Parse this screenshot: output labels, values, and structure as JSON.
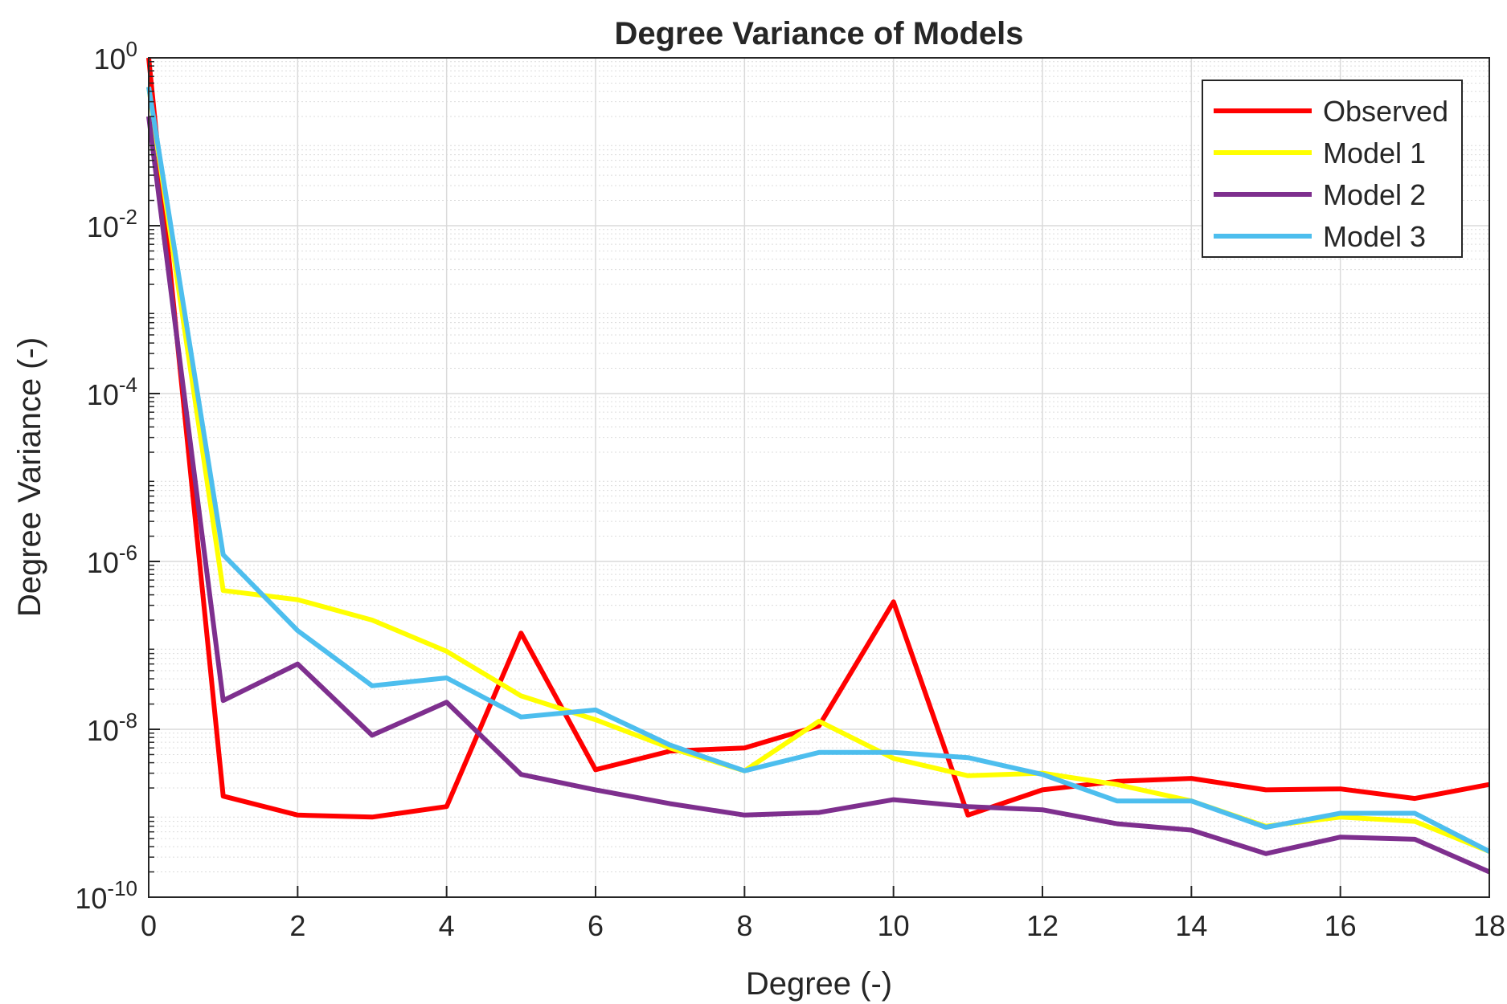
{
  "chart_data": {
    "type": "line",
    "title": "Degree Variance of Models",
    "xlabel": "Degree (-)",
    "ylabel": "Degree Variance (-)",
    "xlim": [
      0,
      18
    ],
    "ylim": [
      1e-10,
      1
    ],
    "yscale": "log",
    "grid": true,
    "minor_grid": true,
    "legend_position": "top-right",
    "x_ticks": [
      0,
      2,
      4,
      6,
      8,
      10,
      12,
      14,
      16,
      18
    ],
    "x_tick_labels": [
      "0",
      "2",
      "4",
      "6",
      "8",
      "10",
      "12",
      "14",
      "16",
      "18"
    ],
    "y_tick_exponents": [
      0,
      -2,
      -4,
      -6,
      -8,
      -10
    ],
    "y_tick_base": "10",
    "y_tick_exponent_labels": [
      "0",
      "-2",
      "-4",
      "-6",
      "-8",
      "-10"
    ],
    "x": [
      0,
      1,
      2,
      3,
      4,
      5,
      6,
      7,
      8,
      9,
      10,
      11,
      12,
      13,
      14,
      15,
      16,
      17,
      18
    ],
    "series": [
      {
        "name": "Observed",
        "color": "#ff0000",
        "values": [
          1,
          1.6e-09,
          9.5e-10,
          9e-10,
          1.2e-09,
          1.4e-07,
          3.3e-09,
          5.5e-09,
          6e-09,
          1.1e-08,
          3.3e-07,
          9.5e-10,
          1.9e-09,
          2.4e-09,
          2.6e-09,
          1.9e-09,
          1.95e-09,
          1.5e-09,
          2.2e-09
        ]
      },
      {
        "name": "Model 1",
        "color": "#ffff00",
        "values": [
          0.45,
          4.5e-07,
          3.5e-07,
          2e-07,
          8.5e-08,
          2.5e-08,
          1.3e-08,
          6e-09,
          3.2e-09,
          1.25e-08,
          4.5e-09,
          2.8e-09,
          3e-09,
          2.2e-09,
          1.4e-09,
          7e-10,
          9e-10,
          8e-10,
          3.5e-10
        ]
      },
      {
        "name": "Model 2",
        "color": "#7e2f8e",
        "values": [
          0.2,
          2.2e-08,
          6e-08,
          8.5e-09,
          2.1e-08,
          2.9e-09,
          1.9e-09,
          1.3e-09,
          9.5e-10,
          1.02e-09,
          1.45e-09,
          1.2e-09,
          1.1e-09,
          7.5e-10,
          6.3e-10,
          3.3e-10,
          5.2e-10,
          4.9e-10,
          2e-10
        ]
      },
      {
        "name": "Model 3",
        "color": "#4dbeee",
        "values": [
          0.45,
          1.2e-06,
          1.5e-07,
          3.3e-08,
          4.1e-08,
          1.4e-08,
          1.7e-08,
          6.5e-09,
          3.2e-09,
          5.3e-09,
          5.3e-09,
          4.6e-09,
          2.9e-09,
          1.4e-09,
          1.4e-09,
          6.8e-10,
          1e-09,
          1e-09,
          3.5e-10
        ]
      }
    ]
  }
}
